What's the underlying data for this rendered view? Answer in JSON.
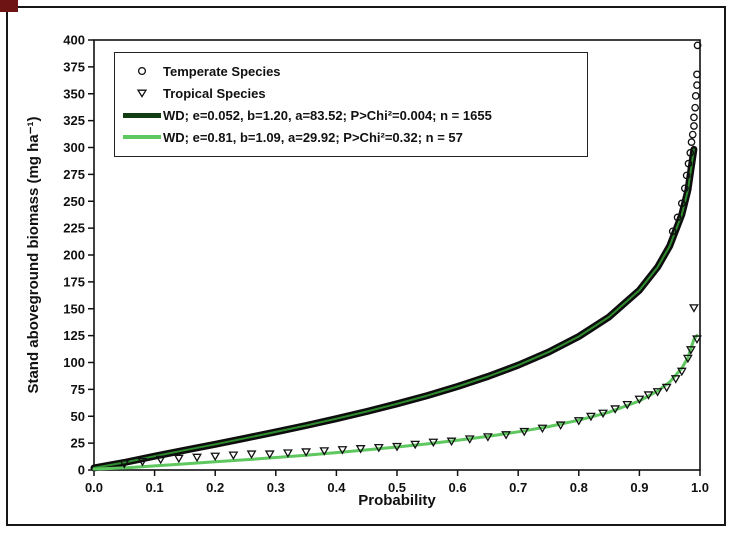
{
  "figure": {
    "corner_mark_color": "#6e1414",
    "border_color": "#161616",
    "background": "#ffffff"
  },
  "chart_data": {
    "type": "scatter",
    "title": "",
    "xlabel": "Probability",
    "ylabel": "Stand aboveground biomass (mg ha⁻¹)",
    "xlim": [
      0,
      1
    ],
    "ylim": [
      0,
      400
    ],
    "grid": false,
    "legend_position": "upper-left",
    "xticks": [
      0,
      0.1,
      0.2,
      0.3,
      0.4,
      0.5,
      0.6,
      0.7,
      0.8,
      0.9,
      1.0
    ],
    "xtick_labels": [
      "0.0",
      "0.1",
      "0.2",
      "0.3",
      "0.4",
      "0.5",
      "0.6",
      "0.7",
      "0.8",
      "0.9",
      "1.0"
    ],
    "yticks": [
      0,
      25,
      50,
      75,
      100,
      125,
      150,
      175,
      200,
      225,
      250,
      275,
      300,
      325,
      350,
      375,
      400
    ],
    "legend": [
      {
        "label": "Temperate Species",
        "marker": "circle",
        "color": "#111111"
      },
      {
        "label": "Tropical Species",
        "marker": "triangle-down",
        "color": "#111111"
      },
      {
        "label": "WD; e=0.052, b=1.20, a=83.52; P>Chi²=0.004; n = 1655",
        "marker": "line",
        "color": "#123d12"
      },
      {
        "label": "WD; e=0.81, b=1.09, a=29.92; P>Chi²=0.32; n = 57",
        "marker": "line",
        "color": "#5fc75f"
      }
    ],
    "series": [
      {
        "name": "temperate-markers-band",
        "kind": "line",
        "color": "#0d0d0d",
        "width": 7,
        "x": [
          0,
          0.05,
          0.1,
          0.15,
          0.2,
          0.25,
          0.3,
          0.35,
          0.4,
          0.45,
          0.5,
          0.55,
          0.6,
          0.65,
          0.7,
          0.75,
          0.8,
          0.85,
          0.9,
          0.93,
          0.95,
          0.97,
          0.98,
          0.99
        ],
        "y": [
          2,
          7,
          12.8,
          18.4,
          23.9,
          29.6,
          35.4,
          41.4,
          47.7,
          54.4,
          61.6,
          69.2,
          77.7,
          87.0,
          97.5,
          109.7,
          124.2,
          142.4,
          167.3,
          188.7,
          208.4,
          237.6,
          260.3,
          298.2
        ]
      },
      {
        "name": "temperate-fit",
        "kind": "line",
        "color": "#2e8b2e",
        "width": 2,
        "same_as": "temperate-markers-band"
      },
      {
        "name": "tropical-fit",
        "kind": "line",
        "color": "#5fc75f",
        "width": 3,
        "x": [
          0,
          0.05,
          0.1,
          0.15,
          0.2,
          0.25,
          0.3,
          0.35,
          0.4,
          0.45,
          0.5,
          0.55,
          0.6,
          0.65,
          0.7,
          0.75,
          0.8,
          0.85,
          0.9,
          0.93,
          0.95,
          0.97,
          0.98,
          0.99,
          0.995
        ],
        "y": [
          0.8,
          2.0,
          3.8,
          5.7,
          7.6,
          9.5,
          11.6,
          13.8,
          16.2,
          18.7,
          21.4,
          24.3,
          27.6,
          31.3,
          35.5,
          40.4,
          46.3,
          53.8,
          64.3,
          73.4,
          81.9,
          94.6,
          104.6,
          121.5,
          125
        ]
      },
      {
        "name": "temperate-points",
        "kind": "scatter",
        "marker": "circle",
        "color": "#111111",
        "x": [
          0.955,
          0.963,
          0.97,
          0.975,
          0.978,
          0.981,
          0.984,
          0.986,
          0.988,
          0.99,
          0.99,
          0.992,
          0.993,
          0.995,
          0.995,
          0.996
        ],
        "y": [
          222,
          235,
          248,
          262,
          274,
          285,
          295,
          305,
          312,
          320,
          328,
          337,
          348,
          358,
          368,
          395
        ]
      },
      {
        "name": "tropical-points",
        "kind": "scatter",
        "marker": "triangle-down",
        "color": "#111111",
        "x": [
          0.05,
          0.08,
          0.11,
          0.14,
          0.17,
          0.2,
          0.23,
          0.26,
          0.29,
          0.32,
          0.35,
          0.38,
          0.41,
          0.44,
          0.47,
          0.5,
          0.53,
          0.56,
          0.59,
          0.62,
          0.65,
          0.68,
          0.71,
          0.74,
          0.77,
          0.8,
          0.82,
          0.84,
          0.86,
          0.88,
          0.9,
          0.915,
          0.93,
          0.945,
          0.96,
          0.97,
          0.98,
          0.985,
          0.99,
          0.995
        ],
        "y": [
          6,
          8,
          10,
          11,
          12,
          13,
          14,
          15,
          15,
          16,
          17,
          18,
          19,
          20,
          21,
          22,
          24,
          26,
          27,
          29,
          31,
          33,
          36,
          39,
          42,
          46,
          50,
          53,
          57,
          61,
          66,
          70,
          73,
          77,
          85,
          92,
          104,
          112,
          151,
          122
        ]
      }
    ]
  }
}
